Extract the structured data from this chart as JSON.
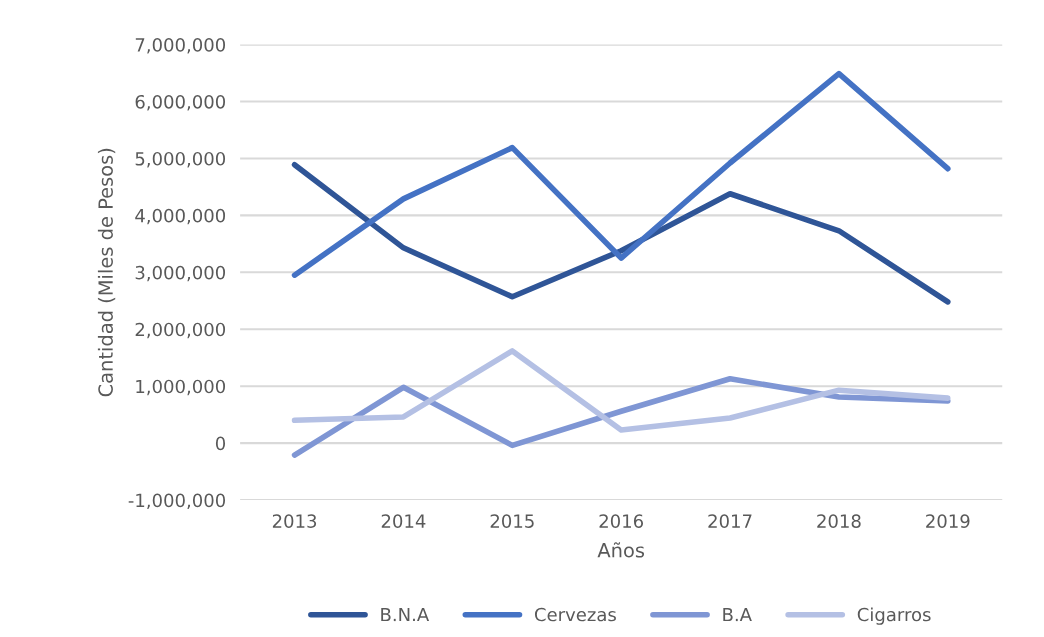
{
  "chart_data": {
    "type": "line",
    "xlabel": "Años",
    "ylabel": "Cantidad (Miles de Pesos)",
    "categories": [
      "2013",
      "2014",
      "2015",
      "2016",
      "2017",
      "2018",
      "2019"
    ],
    "series": [
      {
        "name": "B.N.A",
        "color": "#2f5597",
        "values": [
          4890000,
          3430000,
          2570000,
          3380000,
          4380000,
          3730000,
          2480000
        ]
      },
      {
        "name": "Cervezas",
        "color": "#4472c4",
        "values": [
          2950000,
          4290000,
          5190000,
          3250000,
          4920000,
          6490000,
          4820000
        ]
      },
      {
        "name": "B.A",
        "color": "#7f96d4",
        "values": [
          -210000,
          980000,
          -40000,
          560000,
          1130000,
          810000,
          740000
        ]
      },
      {
        "name": "Cigarros",
        "color": "#b4c0e4",
        "values": [
          400000,
          460000,
          1620000,
          230000,
          440000,
          930000,
          790000
        ]
      }
    ],
    "ylim": [
      -1000000,
      7000000
    ],
    "yticks": [
      {
        "value": -1000000,
        "label": "-1,000,000"
      },
      {
        "value": 0,
        "label": "0"
      },
      {
        "value": 1000000,
        "label": "1,000,000"
      },
      {
        "value": 2000000,
        "label": "2,000,000"
      },
      {
        "value": 3000000,
        "label": "3,000,000"
      },
      {
        "value": 4000000,
        "label": "4,000,000"
      },
      {
        "value": 5000000,
        "label": "5,000,000"
      },
      {
        "value": 6000000,
        "label": "6,000,000"
      },
      {
        "value": 7000000,
        "label": "7,000,000"
      }
    ],
    "grid": "y",
    "legend": "bottom",
    "marker": "none",
    "line_style": "solid"
  }
}
